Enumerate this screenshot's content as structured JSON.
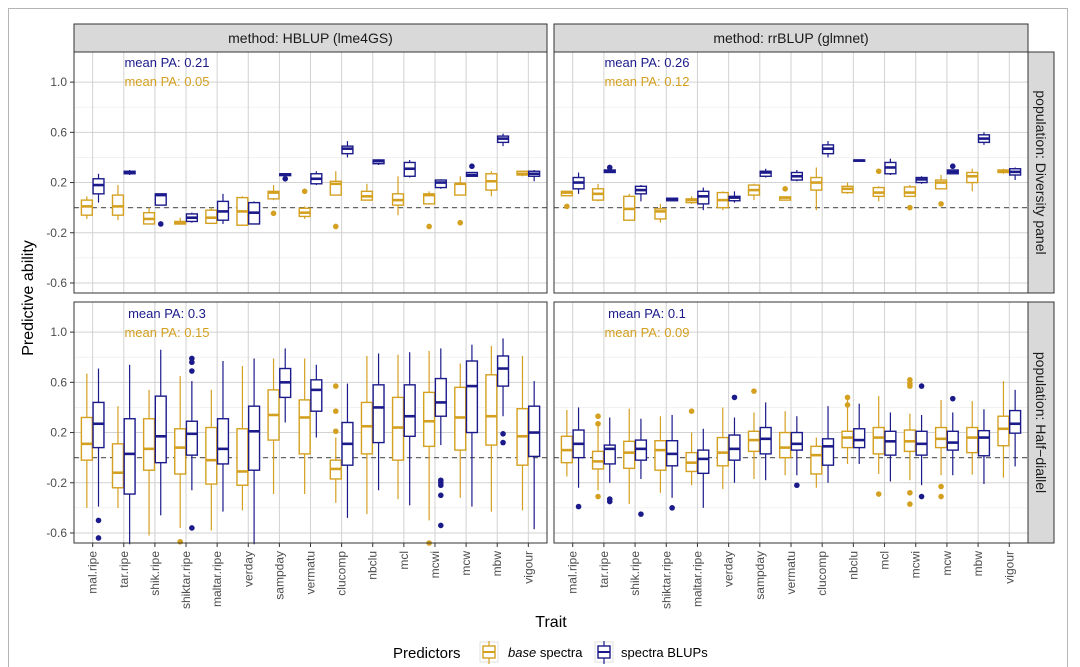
{
  "chart_data": {
    "type": "box",
    "title": "",
    "xlabel": "Trait",
    "ylabel": "Predictive ability",
    "ylim": [
      -0.68,
      1.24
    ],
    "yticks": [
      -0.6,
      -0.2,
      0.2,
      0.6,
      1.0
    ],
    "ytick_labels": [
      "-0.6",
      "-0.2",
      "0.2",
      "0.6",
      "1.0"
    ],
    "minor_yticks": [
      -0.4,
      0,
      0.4,
      0.8
    ],
    "reference_line": 0,
    "grid": true,
    "categories": [
      "mal.ripe",
      "tar.ripe",
      "shik.ripe",
      "shiktar.ripe",
      "maltar.ripe",
      "verday",
      "sampday",
      "vermatu",
      "clucomp",
      "nbclu",
      "mcl",
      "mcwi",
      "mcw",
      "mbw",
      "vigour"
    ],
    "columns": [
      "method: HBLUP (lme4GS)",
      "method: rrBLUP (glmnet)"
    ],
    "rows": [
      "population: Diversity panel",
      "population: Half−diallel"
    ],
    "colors": {
      "base": "#D4A020",
      "blup": "#1B1A8A"
    },
    "legend": {
      "position": "bottom",
      "title": "Predictors",
      "entries": [
        {
          "key": "base",
          "label_italic": "base",
          "label_rest": " spectra"
        },
        {
          "key": "blup",
          "label_italic": "",
          "label_rest": "spectra BLUPs"
        }
      ]
    },
    "box_format": "[whisker_low, q1, median, q3, whisker_high, outliers]",
    "panels": [
      {
        "row": 0,
        "col": 0,
        "mean_pa": {
          "blup": "mean PA: 0.21",
          "base": "mean PA: 0.05"
        },
        "base": [
          [
            -0.09,
            -0.06,
            0.01,
            0.06,
            0.09
          ],
          [
            -0.1,
            -0.06,
            0.01,
            0.1,
            0.18
          ],
          [
            -0.13,
            -0.13,
            -0.09,
            -0.04,
            0.0
          ],
          [
            -0.13,
            -0.13,
            -0.125,
            -0.11,
            -0.08
          ],
          [
            -0.125,
            -0.125,
            -0.08,
            -0.02,
            0.0
          ],
          [
            -0.14,
            -0.14,
            -0.03,
            0.08,
            0.09
          ],
          [
            0.06,
            0.07,
            0.12,
            0.13,
            0.18,
            [
              -0.045
            ]
          ],
          [
            -0.09,
            -0.07,
            -0.04,
            -0.005,
            0.01,
            [
              0.13
            ]
          ],
          [
            0.1,
            0.1,
            0.19,
            0.21,
            0.29,
            [
              -0.15
            ]
          ],
          [
            0.06,
            0.06,
            0.09,
            0.13,
            0.19
          ],
          [
            -0.06,
            0.02,
            0.06,
            0.11,
            0.25
          ],
          [
            0.03,
            0.03,
            0.1,
            0.11,
            0.13,
            [
              -0.15
            ]
          ],
          [
            0.1,
            0.1,
            0.19,
            0.19,
            0.25,
            [
              -0.12
            ]
          ],
          [
            0.09,
            0.14,
            0.21,
            0.27,
            0.29
          ],
          [
            0.25,
            0.26,
            0.27,
            0.29,
            0.29
          ]
        ],
        "blup": [
          [
            0.04,
            0.11,
            0.18,
            0.23,
            0.27
          ],
          [
            0.26,
            0.27,
            0.28,
            0.29,
            0.3
          ],
          [
            0.02,
            0.02,
            0.1,
            0.11,
            0.11,
            [
              -0.13
            ]
          ],
          [
            -0.12,
            -0.11,
            -0.08,
            -0.05,
            -0.04
          ],
          [
            -0.13,
            -0.1,
            -0.03,
            0.05,
            0.11
          ],
          [
            -0.13,
            -0.13,
            -0.04,
            0.04,
            0.05
          ],
          [
            0.25,
            0.255,
            0.265,
            0.27,
            0.27,
            [
              0.23
            ]
          ],
          [
            0.18,
            0.19,
            0.23,
            0.27,
            0.29
          ],
          [
            0.4,
            0.43,
            0.47,
            0.49,
            0.53
          ],
          [
            0.34,
            0.35,
            0.37,
            0.38,
            0.385
          ],
          [
            0.24,
            0.25,
            0.31,
            0.36,
            0.38
          ],
          [
            0.15,
            0.16,
            0.2,
            0.22,
            0.225
          ],
          [
            0.25,
            0.25,
            0.26,
            0.28,
            0.28,
            [
              0.33
            ]
          ],
          [
            0.49,
            0.52,
            0.55,
            0.57,
            0.59
          ],
          [
            0.21,
            0.25,
            0.27,
            0.29,
            0.3
          ]
        ]
      },
      {
        "row": 0,
        "col": 1,
        "mean_pa": {
          "blup": "mean PA: 0.26",
          "base": "mean PA: 0.12"
        },
        "base": [
          [
            0.095,
            0.095,
            0.12,
            0.13,
            0.13,
            [
              0.01
            ]
          ],
          [
            0.05,
            0.06,
            0.11,
            0.15,
            0.19
          ],
          [
            -0.1,
            -0.1,
            -0.01,
            0.09,
            0.11
          ],
          [
            -0.12,
            -0.09,
            -0.03,
            -0.01,
            0.03
          ],
          [
            0.03,
            0.04,
            0.06,
            0.07,
            0.09
          ],
          [
            -0.02,
            0.0,
            0.06,
            0.12,
            0.13
          ],
          [
            0.06,
            0.1,
            0.14,
            0.18,
            0.19
          ],
          [
            0.06,
            0.06,
            0.08,
            0.085,
            0.085,
            [
              0.15
            ]
          ],
          [
            -0.02,
            0.14,
            0.2,
            0.24,
            0.32
          ],
          [
            0.11,
            0.12,
            0.15,
            0.17,
            0.2
          ],
          [
            0.05,
            0.09,
            0.12,
            0.16,
            0.17,
            [
              0.29
            ]
          ],
          [
            0.09,
            0.09,
            0.12,
            0.165,
            0.18,
            [
              0.0
            ]
          ],
          [
            0.15,
            0.15,
            0.2,
            0.22,
            0.26,
            [
              0.03
            ]
          ],
          [
            0.13,
            0.2,
            0.25,
            0.28,
            0.31
          ],
          [
            0.27,
            0.28,
            0.29,
            0.3,
            0.31
          ]
        ],
        "blup": [
          [
            0.11,
            0.15,
            0.2,
            0.24,
            0.28
          ],
          [
            0.28,
            0.28,
            0.29,
            0.3,
            0.3,
            [
              0.32
            ]
          ],
          [
            0.05,
            0.11,
            0.14,
            0.17,
            0.18
          ],
          [
            0.055,
            0.055,
            0.07,
            0.075,
            0.075
          ],
          [
            -0.02,
            0.03,
            0.09,
            0.13,
            0.16
          ],
          [
            0.04,
            0.055,
            0.08,
            0.09,
            0.13
          ],
          [
            0.24,
            0.25,
            0.28,
            0.29,
            0.31
          ],
          [
            0.21,
            0.22,
            0.25,
            0.28,
            0.3
          ],
          [
            0.4,
            0.43,
            0.47,
            0.5,
            0.53
          ],
          [
            0.37,
            0.37,
            0.375,
            0.38,
            0.38
          ],
          [
            0.26,
            0.27,
            0.32,
            0.36,
            0.39
          ],
          [
            0.19,
            0.2,
            0.225,
            0.24,
            0.25
          ],
          [
            0.27,
            0.27,
            0.285,
            0.3,
            0.3,
            [
              0.33
            ]
          ],
          [
            0.5,
            0.52,
            0.55,
            0.58,
            0.6
          ],
          [
            0.22,
            0.26,
            0.285,
            0.31,
            0.32
          ]
        ]
      },
      {
        "row": 1,
        "col": 0,
        "mean_pa": {
          "blup": "mean PA: 0.3",
          "base": "mean PA: 0.15"
        },
        "base": [
          [
            -0.4,
            -0.02,
            0.11,
            0.32,
            0.67
          ],
          [
            -0.4,
            -0.24,
            -0.12,
            0.11,
            0.41
          ],
          [
            -0.62,
            -0.1,
            0.07,
            0.31,
            0.54
          ],
          [
            -0.56,
            -0.13,
            0.08,
            0.23,
            0.65,
            [
              -0.67
            ]
          ],
          [
            -0.58,
            -0.21,
            -0.02,
            0.24,
            0.54
          ],
          [
            -0.42,
            -0.22,
            -0.11,
            0.23,
            0.73
          ],
          [
            -0.29,
            0.14,
            0.34,
            0.54,
            0.79
          ],
          [
            -0.29,
            0.03,
            0.32,
            0.46,
            0.79
          ],
          [
            -0.36,
            -0.17,
            -0.09,
            -0.02,
            0.16,
            [
              0.57,
              0.37,
              0.21
            ]
          ],
          [
            -0.45,
            0.03,
            0.25,
            0.44,
            0.81
          ],
          [
            -0.33,
            -0.02,
            0.24,
            0.48,
            0.82
          ],
          [
            -0.5,
            0.09,
            0.29,
            0.52,
            0.85,
            [
              -0.68
            ]
          ],
          [
            -0.32,
            0.06,
            0.32,
            0.56,
            0.75
          ],
          [
            -0.43,
            0.1,
            0.33,
            0.66,
            0.89
          ],
          [
            -0.42,
            -0.06,
            0.17,
            0.39,
            0.81
          ]
        ],
        "blup": [
          [
            -0.39,
            0.08,
            0.27,
            0.44,
            0.71,
            [
              -0.5,
              -0.64
            ]
          ],
          [
            -0.69,
            -0.29,
            0.03,
            0.31,
            0.74
          ],
          [
            -0.46,
            -0.04,
            0.17,
            0.49,
            0.86
          ],
          [
            -0.26,
            0.02,
            0.19,
            0.29,
            0.61,
            [
              0.79,
              0.76,
              0.69,
              -0.56
            ]
          ],
          [
            -0.43,
            -0.05,
            0.07,
            0.31,
            0.77
          ],
          [
            -0.69,
            -0.1,
            0.21,
            0.41,
            0.79
          ],
          [
            0.28,
            0.48,
            0.6,
            0.71,
            0.87
          ],
          [
            0.16,
            0.37,
            0.54,
            0.62,
            0.74
          ],
          [
            -0.48,
            -0.06,
            0.11,
            0.28,
            0.59
          ],
          [
            -0.26,
            0.12,
            0.4,
            0.58,
            0.83
          ],
          [
            -0.38,
            0.17,
            0.33,
            0.58,
            0.84
          ],
          [
            0.1,
            0.33,
            0.44,
            0.63,
            0.87,
            [
              -0.18,
              -0.2,
              -0.22,
              -0.3,
              -0.54
            ]
          ],
          [
            -0.39,
            0.2,
            0.57,
            0.77,
            0.9
          ],
          [
            0.33,
            0.57,
            0.71,
            0.81,
            0.95,
            [
              0.19,
              0.12
            ]
          ],
          [
            -0.57,
            0.01,
            0.2,
            0.41,
            0.61
          ]
        ]
      },
      {
        "row": 1,
        "col": 1,
        "mean_pa": {
          "blup": "mean PA: 0.1",
          "base": "mean PA: 0.09"
        },
        "base": [
          [
            -0.15,
            -0.04,
            0.06,
            0.17,
            0.38
          ],
          [
            -0.26,
            -0.09,
            -0.03,
            0.05,
            0.25,
            [
              0.33,
              0.27,
              -0.31
            ]
          ],
          [
            -0.37,
            -0.085,
            0.04,
            0.13,
            0.39
          ],
          [
            -0.28,
            -0.1,
            0.06,
            0.135,
            0.33
          ],
          [
            -0.22,
            -0.11,
            -0.04,
            0.04,
            0.2,
            [
              0.37
            ]
          ],
          [
            -0.25,
            -0.065,
            0.04,
            0.16,
            0.4
          ],
          [
            -0.17,
            0.05,
            0.14,
            0.21,
            0.36,
            [
              0.53
            ]
          ],
          [
            -0.14,
            0.0,
            0.08,
            0.2,
            0.37
          ],
          [
            -0.24,
            -0.13,
            0.02,
            0.09,
            0.16
          ],
          [
            -0.05,
            0.08,
            0.16,
            0.21,
            0.49,
            [
              0.48,
              0.42
            ]
          ],
          [
            -0.13,
            0.03,
            0.16,
            0.24,
            0.49,
            [
              -0.29
            ]
          ],
          [
            -0.18,
            0.05,
            0.13,
            0.22,
            0.35,
            [
              0.62,
              0.59,
              0.57,
              -0.28,
              -0.37
            ]
          ],
          [
            -0.14,
            0.08,
            0.15,
            0.24,
            0.46,
            [
              -0.23,
              -0.31
            ]
          ],
          [
            -0.135,
            0.04,
            0.16,
            0.24,
            0.45
          ],
          [
            -0.16,
            0.095,
            0.23,
            0.33,
            0.61
          ]
        ],
        "blup": [
          [
            -0.24,
            0.0,
            0.11,
            0.22,
            0.4,
            [
              -0.39
            ]
          ],
          [
            -0.2,
            -0.05,
            0.07,
            0.1,
            0.32,
            [
              -0.33,
              -0.35
            ]
          ],
          [
            -0.17,
            -0.02,
            0.07,
            0.14,
            0.31,
            [
              -0.45
            ]
          ],
          [
            -0.32,
            -0.065,
            0.03,
            0.135,
            0.34,
            [
              -0.4
            ]
          ],
          [
            -0.4,
            -0.125,
            -0.01,
            0.06,
            0.23
          ],
          [
            -0.2,
            -0.02,
            0.07,
            0.18,
            0.32,
            [
              0.48
            ]
          ],
          [
            -0.18,
            0.03,
            0.15,
            0.24,
            0.44
          ],
          [
            -0.14,
            0.06,
            0.11,
            0.2,
            0.33,
            [
              -0.22
            ]
          ],
          [
            -0.2,
            -0.06,
            0.09,
            0.15,
            0.41
          ],
          [
            -0.05,
            0.08,
            0.14,
            0.23,
            0.43
          ],
          [
            -0.19,
            0.02,
            0.13,
            0.21,
            0.36
          ],
          [
            -0.22,
            0.02,
            0.11,
            0.21,
            0.34,
            [
              0.57,
              -0.31
            ]
          ],
          [
            -0.14,
            0.06,
            0.12,
            0.21,
            0.36,
            [
              0.47
            ]
          ],
          [
            -0.21,
            0.015,
            0.16,
            0.215,
            0.385
          ],
          [
            -0.07,
            0.195,
            0.27,
            0.375,
            0.54
          ]
        ]
      }
    ]
  }
}
